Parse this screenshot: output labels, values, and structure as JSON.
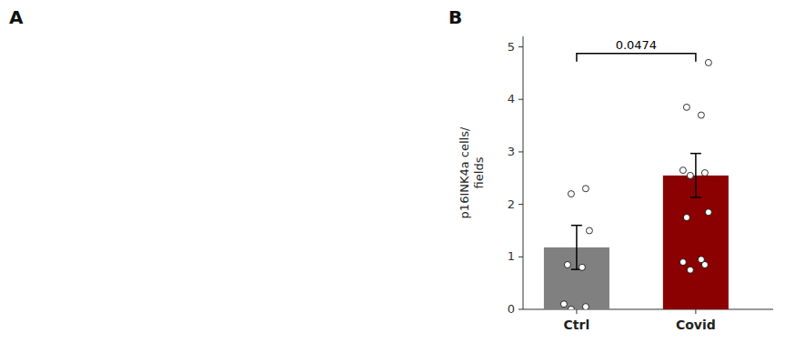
{
  "chart_data": {
    "type": "bar",
    "categories": [
      "Ctrl",
      "Covid"
    ],
    "values": [
      1.18,
      2.55
    ],
    "errors": [
      0.42,
      0.42
    ],
    "colors": [
      "#808080",
      "#8B0000"
    ],
    "points": [
      [
        0.0,
        0.05,
        0.1,
        0.8,
        0.85,
        1.5,
        2.2,
        2.3
      ],
      [
        0.75,
        0.85,
        0.9,
        0.95,
        1.75,
        1.85,
        2.55,
        2.6,
        2.65,
        3.7,
        3.85,
        4.7
      ]
    ],
    "ylabel": "p16INK4a cells/\nfields",
    "annotations": [
      "A",
      "B",
      "0.0474"
    ],
    "ylim": [
      0,
      5.2
    ],
    "yticks": [
      0,
      1,
      2,
      3,
      4,
      5
    ],
    "grid": false
  }
}
